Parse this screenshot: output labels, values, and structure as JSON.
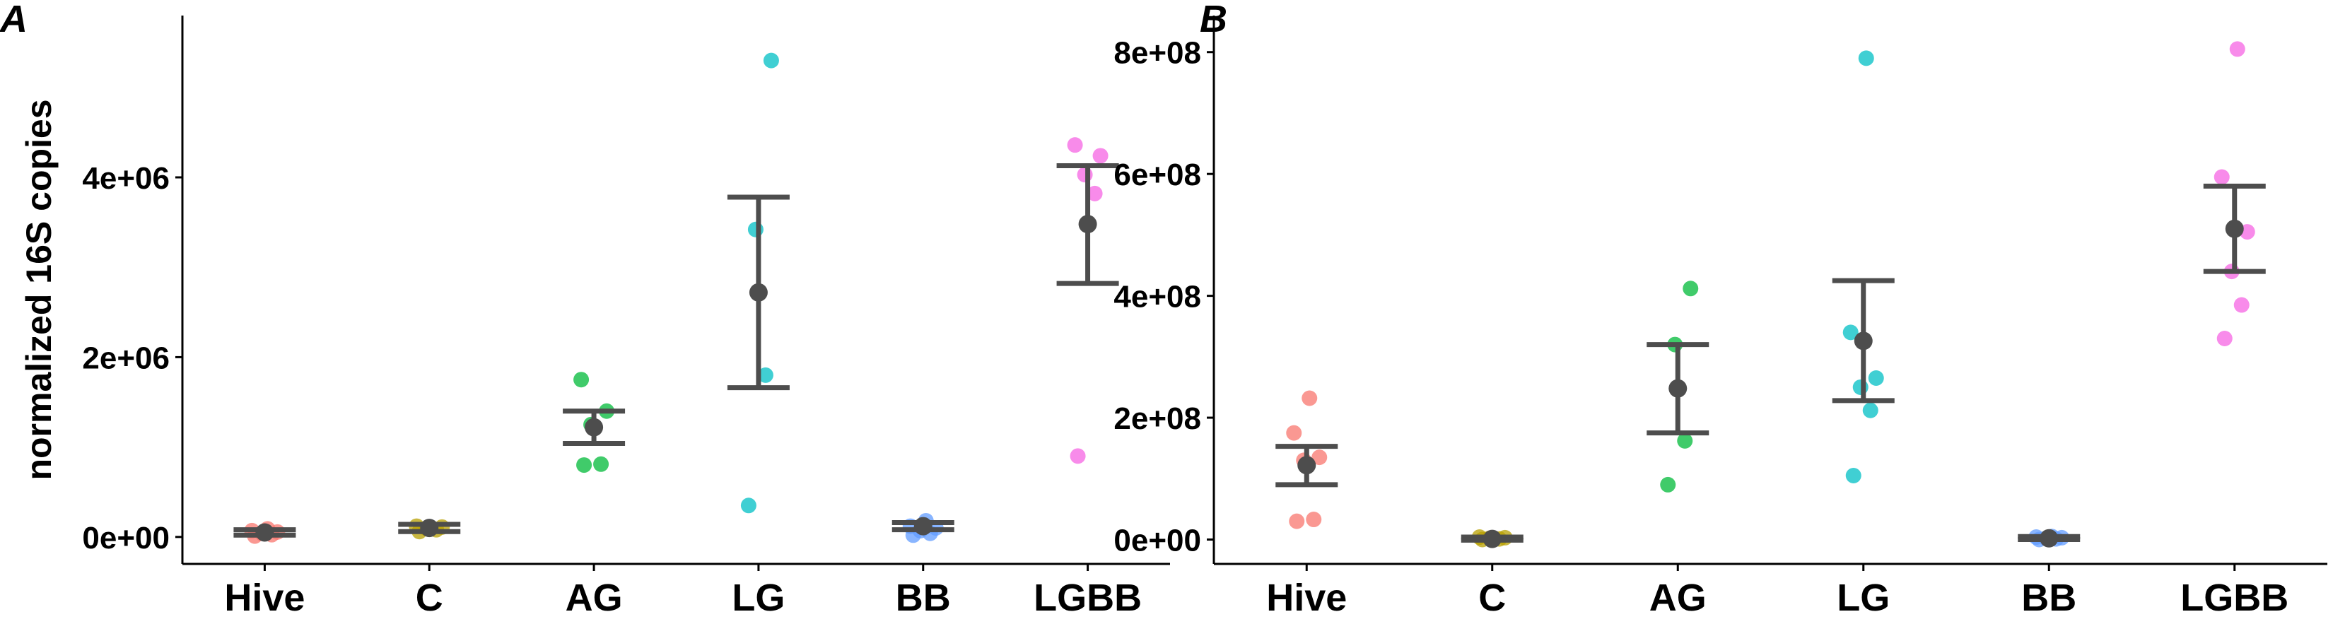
{
  "chart_data": [
    {
      "type": "scatter",
      "panel_label": "A",
      "title": "",
      "xlabel": "",
      "ylabel": "normalized 16S copies",
      "categories": [
        "Hive",
        "C",
        "AG",
        "LG",
        "BB",
        "LGBB"
      ],
      "ylim": [
        -300000,
        5800000
      ],
      "yticks": [
        0,
        2000000,
        4000000
      ],
      "ytick_labels": [
        "0e+00",
        "2e+06",
        "4e+06"
      ],
      "grid": false,
      "legend": "none",
      "colors": [
        "#F8766D",
        "#B79F00",
        "#00BA38",
        "#00BFC4",
        "#619CFF",
        "#F564E3"
      ],
      "summary_color": "#4D4D4D",
      "points": [
        [
          10000,
          25000,
          40000,
          55000,
          70000,
          90000
        ],
        [
          60000,
          80000,
          95000,
          110000,
          120000
        ],
        [
          800000,
          810000,
          1250000,
          1400000,
          1750000
        ],
        [
          350000,
          1800000,
          3420000,
          5300000
        ],
        [
          20000,
          40000,
          70000,
          100000,
          120000,
          180000
        ],
        [
          900000,
          3820000,
          4030000,
          4240000,
          4360000
        ]
      ],
      "mean": [
        50000,
        100000,
        1220000,
        2720000,
        120000,
        3480000
      ],
      "error_low": [
        20000,
        60000,
        1040000,
        1660000,
        80000,
        2820000
      ],
      "error_high": [
        80000,
        140000,
        1400000,
        3780000,
        160000,
        4130000
      ]
    },
    {
      "type": "scatter",
      "panel_label": "B",
      "title": "",
      "xlabel": "",
      "ylabel": "",
      "categories": [
        "Hive",
        "C",
        "AG",
        "LG",
        "BB",
        "LGBB"
      ],
      "ylim": [
        -40000000,
        860000000
      ],
      "yticks": [
        0,
        200000000,
        400000000,
        600000000,
        800000000
      ],
      "ytick_labels": [
        "0e+00",
        "2e+08",
        "4e+08",
        "6e+08",
        "8e+08"
      ],
      "grid": false,
      "legend": "none",
      "colors": [
        "#F8766D",
        "#B79F00",
        "#00BA38",
        "#00BFC4",
        "#619CFF",
        "#F564E3"
      ],
      "summary_color": "#4D4D4D",
      "points": [
        [
          30000000,
          33000000,
          130000000,
          135000000,
          175000000,
          232000000
        ],
        [
          0,
          1000000,
          2000000,
          3000000,
          4000000
        ],
        [
          90000000,
          162000000,
          320000000,
          412000000
        ],
        [
          105000000,
          212000000,
          250000000,
          265000000,
          340000000,
          790000000
        ],
        [
          0,
          1000000,
          2000000,
          3000000,
          4000000,
          5000000
        ],
        [
          330000000,
          385000000,
          440000000,
          505000000,
          595000000,
          805000000
        ]
      ],
      "mean": [
        122000000,
        1000000,
        248000000,
        326000000,
        2000000,
        510000000
      ],
      "error_low": [
        90000000,
        -1000000,
        175000000,
        228000000,
        0,
        440000000
      ],
      "error_high": [
        153000000,
        4000000,
        320000000,
        425000000,
        5000000,
        580000000
      ]
    }
  ]
}
